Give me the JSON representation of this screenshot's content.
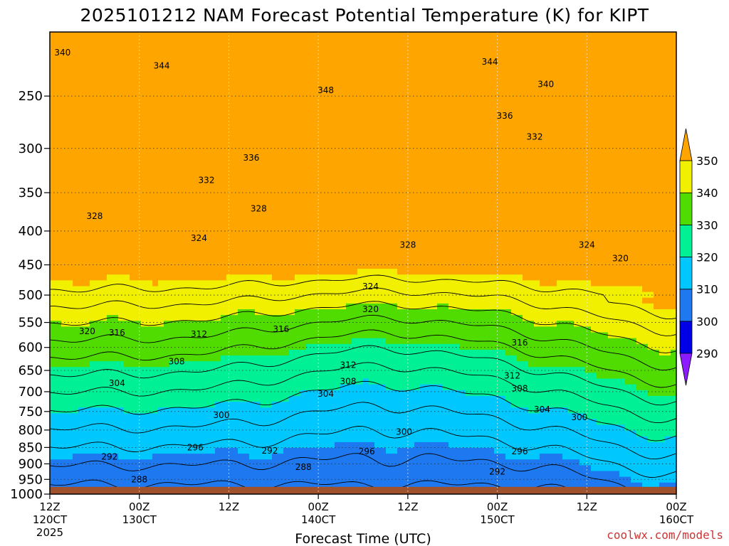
{
  "chart_data": {
    "type": "heatmap",
    "title": "2025101212 NAM Forecast Potential Temperature (K) for KIPT",
    "xlabel": "Forecast Time (UTC)",
    "ylabel": "",
    "credit": "coolwx.com/models",
    "x_ticks": [
      {
        "hour": 0,
        "top": "12Z",
        "bottom": "120CT",
        "year": "2025"
      },
      {
        "hour": 12,
        "top": "00Z",
        "bottom": "130CT"
      },
      {
        "hour": 24,
        "top": "12Z",
        "bottom": ""
      },
      {
        "hour": 36,
        "top": "00Z",
        "bottom": "140CT"
      },
      {
        "hour": 48,
        "top": "12Z",
        "bottom": ""
      },
      {
        "hour": 60,
        "top": "00Z",
        "bottom": "150CT"
      },
      {
        "hour": 72,
        "top": "12Z",
        "bottom": ""
      },
      {
        "hour": 84,
        "top": "00Z",
        "bottom": "160CT"
      }
    ],
    "x_range_hours": [
      0,
      84
    ],
    "y_ticks_hpa": [
      250,
      300,
      350,
      400,
      450,
      500,
      550,
      600,
      650,
      700,
      750,
      800,
      850,
      900,
      950,
      1000
    ],
    "y_range_hpa": [
      200,
      1000
    ],
    "y_scale": "log",
    "ground_level_hpa": 975,
    "grid": true,
    "colorbar": {
      "ticks": [
        290,
        300,
        310,
        320,
        330,
        340,
        350
      ],
      "colors": [
        "#8c1cff",
        "#0000e6",
        "#1e78f0",
        "#00c8ff",
        "#00f096",
        "#50dc00",
        "#f0f000",
        "#ffa500"
      ]
    },
    "contour_levels": [
      288,
      292,
      296,
      300,
      304,
      308,
      312,
      316,
      320,
      324,
      328,
      332,
      336,
      340,
      344,
      348
    ],
    "contour_labels": [
      {
        "theta": "340",
        "hour": 1.7,
        "p": 215
      },
      {
        "theta": "344",
        "hour": 15,
        "p": 225
      },
      {
        "theta": "344",
        "hour": 59,
        "p": 222
      },
      {
        "theta": "348",
        "hour": 37,
        "p": 245
      },
      {
        "theta": "340",
        "hour": 66.5,
        "p": 240
      },
      {
        "theta": "336",
        "hour": 61,
        "p": 268
      },
      {
        "theta": "332",
        "hour": 65,
        "p": 288
      },
      {
        "theta": "336",
        "hour": 27,
        "p": 310
      },
      {
        "theta": "332",
        "hour": 21,
        "p": 335
      },
      {
        "theta": "328",
        "hour": 28,
        "p": 370
      },
      {
        "theta": "328",
        "hour": 6,
        "p": 380
      },
      {
        "theta": "324",
        "hour": 20,
        "p": 410
      },
      {
        "theta": "328",
        "hour": 48,
        "p": 420
      },
      {
        "theta": "324",
        "hour": 72,
        "p": 420
      },
      {
        "theta": "320",
        "hour": 76.5,
        "p": 440
      },
      {
        "theta": "324",
        "hour": 43,
        "p": 485
      },
      {
        "theta": "320",
        "hour": 43,
        "p": 525
      },
      {
        "theta": "320",
        "hour": 5,
        "p": 567
      },
      {
        "theta": "316",
        "hour": 9,
        "p": 570
      },
      {
        "theta": "312",
        "hour": 20,
        "p": 573
      },
      {
        "theta": "316",
        "hour": 31,
        "p": 563
      },
      {
        "theta": "316",
        "hour": 63,
        "p": 590
      },
      {
        "theta": "308",
        "hour": 17,
        "p": 630
      },
      {
        "theta": "312",
        "hour": 40,
        "p": 638
      },
      {
        "theta": "304",
        "hour": 9,
        "p": 680
      },
      {
        "theta": "308",
        "hour": 40,
        "p": 675
      },
      {
        "theta": "312",
        "hour": 62,
        "p": 662
      },
      {
        "theta": "304",
        "hour": 37,
        "p": 705
      },
      {
        "theta": "308",
        "hour": 63,
        "p": 692
      },
      {
        "theta": "304",
        "hour": 66,
        "p": 745
      },
      {
        "theta": "300",
        "hour": 23,
        "p": 760
      },
      {
        "theta": "300",
        "hour": 47.5,
        "p": 805
      },
      {
        "theta": "300",
        "hour": 71,
        "p": 765
      },
      {
        "theta": "296",
        "hour": 19.5,
        "p": 850
      },
      {
        "theta": "292",
        "hour": 29.5,
        "p": 860
      },
      {
        "theta": "296",
        "hour": 42.5,
        "p": 862
      },
      {
        "theta": "296",
        "hour": 63,
        "p": 862
      },
      {
        "theta": "292",
        "hour": 8,
        "p": 878
      },
      {
        "theta": "288",
        "hour": 34,
        "p": 910
      },
      {
        "theta": "292",
        "hour": 60,
        "p": 925
      },
      {
        "theta": "288",
        "hour": 12,
        "p": 950
      }
    ]
  }
}
